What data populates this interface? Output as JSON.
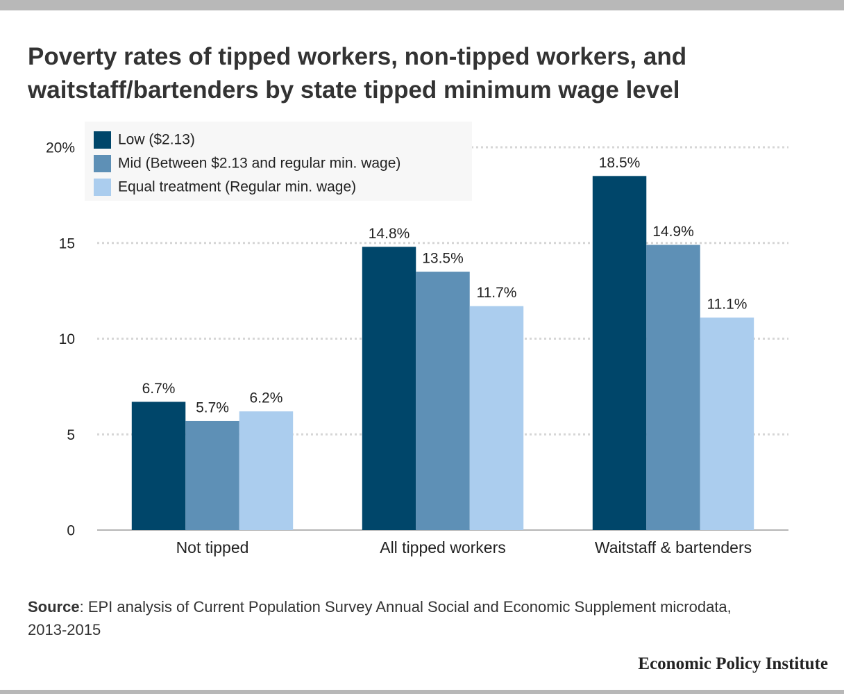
{
  "chart_data": {
    "type": "bar",
    "title": "Poverty rates of tipped workers, non-tipped workers, and waitstaff/bartenders by state tipped minimum wage level",
    "categories": [
      "Not tipped",
      "All tipped workers",
      "Waitstaff & bartenders"
    ],
    "series": [
      {
        "name": "Low ($2.13)",
        "color": "#00466a",
        "values": [
          6.7,
          14.8,
          18.5
        ],
        "value_labels": [
          "6.7%",
          "14.8%",
          "18.5%"
        ]
      },
      {
        "name": "Mid (Between $2.13 and regular min. wage)",
        "color": "#5e90b6",
        "values": [
          5.7,
          13.5,
          14.9
        ],
        "value_labels": [
          "5.7%",
          "13.5%",
          "14.9%"
        ]
      },
      {
        "name": "Equal treatment (Regular min. wage)",
        "color": "#abcdee",
        "values": [
          6.2,
          11.7,
          11.1
        ],
        "value_labels": [
          "6.2%",
          "11.7%",
          "11.1%"
        ]
      }
    ],
    "ylim": [
      0,
      20
    ],
    "yticks": [
      0,
      5,
      10,
      15,
      {
        "value": 20,
        "label": "20%"
      }
    ],
    "grid": true,
    "legend": "top-left"
  },
  "source": {
    "label": "Source",
    "text": ": EPI analysis of Current Population Survey Annual Social and Economic Supplement microdata, 2013-2015"
  },
  "footer": "Economic Policy Institute"
}
